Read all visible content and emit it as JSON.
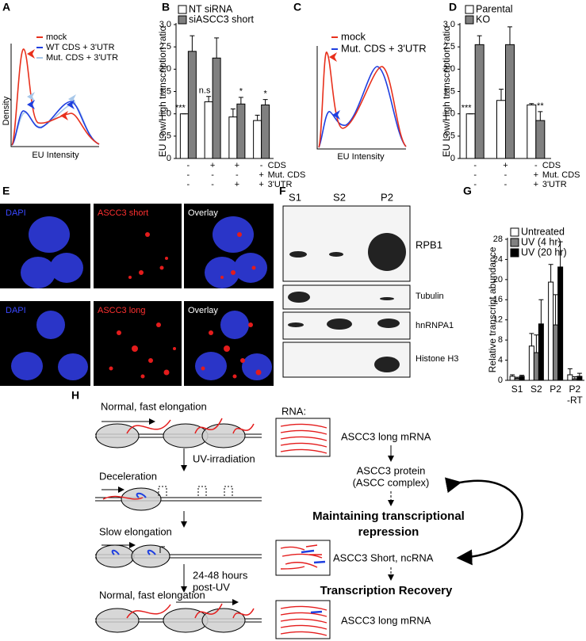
{
  "panel_labels": [
    "A",
    "B",
    "C",
    "D",
    "E",
    "F",
    "G",
    "H"
  ],
  "density_a": {
    "ylabel": "Density",
    "xlabel": "EU Intensity",
    "legend": [
      "mock",
      "WT CDS + 3'UTR",
      "Mut. CDS + 3'UTR"
    ]
  },
  "density_c": {
    "xlabel": "EU Intensity",
    "legend": [
      "mock",
      "Mut. CDS + 3'UTR"
    ]
  },
  "chart_data": [
    {
      "type": "bar",
      "ylabel": "EU Low/High transcription ratio",
      "ylim": [
        0,
        3.0
      ],
      "yticks": [
        0,
        0.5,
        {
          "value": 1,
          "label": "1.0"
        },
        1.5,
        {
          "value": 2,
          "label": "2.0"
        },
        2.5,
        {
          "value": 3,
          "label": "3.0"
        }
      ],
      "series": [
        {
          "name": "NT siRNA",
          "color": "#ffffff",
          "values": [
            1.0,
            1.27,
            0.93,
            0.85
          ],
          "errors": [
            0,
            0.12,
            0.18,
            0.12
          ]
        },
        {
          "name": "siASCC3 short",
          "color": "#808080",
          "values": [
            2.4,
            2.25,
            1.22,
            1.2
          ],
          "errors": [
            0.35,
            0.45,
            0.15,
            0.12
          ]
        }
      ],
      "significance": [
        "***",
        "n.s",
        "*",
        "*"
      ],
      "conditions": [
        {
          "name": "CDS",
          "values": [
            "-",
            "+",
            "+",
            "-"
          ]
        },
        {
          "name": "Mut. CDS",
          "values": [
            "-",
            "-",
            "-",
            "+"
          ]
        },
        {
          "name": "3'UTR",
          "values": [
            "-",
            "-",
            "+",
            "+"
          ]
        }
      ]
    },
    {
      "type": "bar",
      "ylabel": "EU Low/High transcription ratio",
      "ylim": [
        0,
        3.0
      ],
      "yticks": [
        0,
        0.5,
        {
          "value": 1,
          "label": "1.0"
        },
        1.5,
        {
          "value": 2,
          "label": "2.0"
        },
        2.5,
        {
          "value": 3,
          "label": "3.0"
        }
      ],
      "series": [
        {
          "name": "Parental",
          "color": "#ffffff",
          "values": [
            1.0,
            1.3,
            1.2
          ],
          "errors": [
            0,
            0.25,
            0.03
          ]
        },
        {
          "name": "KO",
          "color": "#808080",
          "values": [
            2.55,
            2.55,
            0.85
          ],
          "errors": [
            0.2,
            0.4,
            0.2
          ]
        }
      ],
      "significance": [
        "***",
        null,
        "**"
      ],
      "conditions": [
        {
          "name": "CDS",
          "values": [
            "-",
            "+",
            "-"
          ]
        },
        {
          "name": "Mut. CDS",
          "values": [
            "-",
            "-",
            "+"
          ]
        },
        {
          "name": "3'UTR",
          "values": [
            "-",
            "-",
            "+"
          ]
        }
      ]
    },
    {
      "type": "bar",
      "ylabel": "Relative transcript abundance",
      "ylim": [
        0,
        28
      ],
      "yticks": [
        0,
        4,
        8,
        12,
        16,
        20,
        24,
        28
      ],
      "categories": [
        "S1",
        "S2",
        "P2",
        "P2\n-RT"
      ],
      "series": [
        {
          "name": "Untreated",
          "color": "#ffffff",
          "values": [
            0.8,
            6.8,
            19.5,
            1.1
          ],
          "errors": [
            0.3,
            2.5,
            3.5,
            1.2
          ]
        },
        {
          "name": "UV (4 hr)",
          "color": "#808080",
          "values": [
            0.4,
            5.5,
            11,
            0.3
          ],
          "errors": [
            0.2,
            3.5,
            6,
            0.4
          ]
        },
        {
          "name": "UV (20 hr)",
          "color": "#000000",
          "values": [
            0.8,
            11.2,
            22.5,
            0.8
          ],
          "errors": [
            0.2,
            4.8,
            5,
            0.6
          ]
        }
      ]
    }
  ],
  "microscopy_e": {
    "rows": [
      [
        "DAPI",
        "ASCC3 short",
        "Overlay"
      ],
      [
        "DAPI",
        "ASCC3 long",
        "Overlay"
      ]
    ]
  },
  "blot_f": {
    "lanes": [
      "S1",
      "S2",
      "P2"
    ],
    "proteins": [
      "RPB1",
      "Tubulin",
      "hnRNPA1",
      "Histone H3"
    ]
  },
  "diagram_h": {
    "steps": [
      "Normal, fast elongation",
      "UV-irradiation",
      "Deceleration",
      "Slow elongation",
      "24-48 hours",
      "post-UV",
      "Normal, fast elongation"
    ],
    "rna_label": "RNA:",
    "products": [
      "ASCC3 long mRNA",
      "ASCC3 Short, ncRNA",
      "ASCC3 long mRNA"
    ],
    "protein": [
      "ASCC3 protein",
      "(ASCC complex)"
    ],
    "outcomes": [
      "Maintaining transcriptional",
      "repression",
      "Transcription Recovery"
    ]
  }
}
